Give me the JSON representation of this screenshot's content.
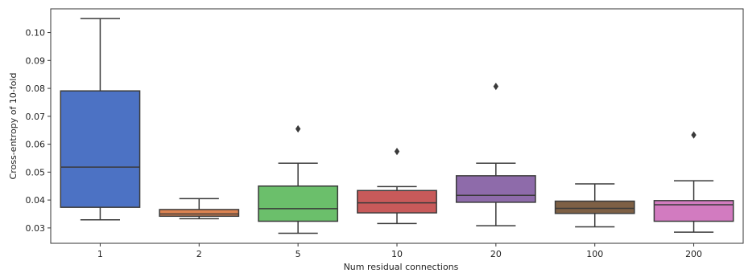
{
  "chart_data": {
    "type": "box",
    "xlabel": "Num residual connections",
    "ylabel": "Cross-entropy of 10-fold",
    "ylim": [
      0.0245,
      0.1085
    ],
    "yticks": [
      0.03,
      0.04,
      0.05,
      0.06,
      0.07,
      0.08,
      0.09,
      0.1
    ],
    "ytick_labels": [
      "0.03",
      "0.04",
      "0.05",
      "0.06",
      "0.07",
      "0.08",
      "0.09",
      "0.10"
    ],
    "categories": [
      "1",
      "2",
      "5",
      "10",
      "20",
      "100",
      "200"
    ],
    "boxes": [
      {
        "category": "1",
        "color": "#4C72C4",
        "whisker_low": 0.0329,
        "q1": 0.0374,
        "median": 0.0518,
        "q3": 0.0791,
        "whisker_high": 0.105,
        "outliers": []
      },
      {
        "category": "2",
        "color": "#DD8452",
        "whisker_low": 0.0333,
        "q1": 0.0342,
        "median": 0.035,
        "q3": 0.0366,
        "whisker_high": 0.0405,
        "outliers": []
      },
      {
        "category": "5",
        "color": "#6BBF6B",
        "whisker_low": 0.0281,
        "q1": 0.0324,
        "median": 0.0369,
        "q3": 0.045,
        "whisker_high": 0.0532,
        "outliers": [
          0.0655
        ]
      },
      {
        "category": "10",
        "color": "#C85A5A",
        "whisker_low": 0.0316,
        "q1": 0.0354,
        "median": 0.039,
        "q3": 0.0434,
        "whisker_high": 0.0448,
        "outliers": [
          0.0574
        ]
      },
      {
        "category": "20",
        "color": "#8E6BAA",
        "whisker_low": 0.0308,
        "q1": 0.0392,
        "median": 0.0417,
        "q3": 0.0487,
        "whisker_high": 0.0532,
        "outliers": [
          0.0807
        ]
      },
      {
        "category": "100",
        "color": "#7E6045",
        "whisker_low": 0.0304,
        "q1": 0.0352,
        "median": 0.037,
        "q3": 0.0396,
        "whisker_high": 0.0458,
        "outliers": []
      },
      {
        "category": "200",
        "color": "#D27BC0",
        "whisker_low": 0.0285,
        "q1": 0.0324,
        "median": 0.0383,
        "q3": 0.0398,
        "whisker_high": 0.0469,
        "outliers": [
          0.0633
        ]
      }
    ],
    "grid": false,
    "legend": "none"
  }
}
